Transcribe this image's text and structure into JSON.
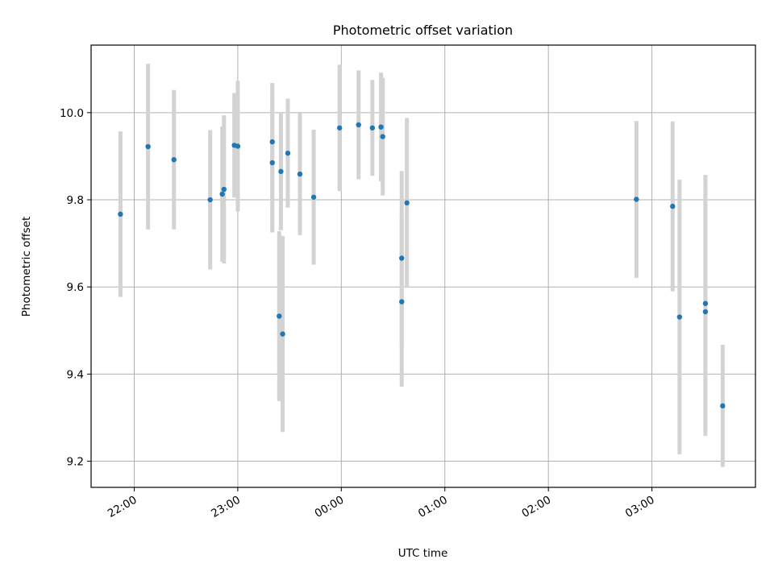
{
  "chart_data": {
    "type": "scatter",
    "title": "Photometric offset variation",
    "xlabel": "UTC time",
    "ylabel": "Photometric offset",
    "x_unit": "UTC clock time",
    "xlim": [
      "21:35",
      "04:00"
    ],
    "ylim": [
      9.14,
      10.155
    ],
    "x_ticks": [
      "22:00",
      "23:00",
      "00:00",
      "01:00",
      "02:00",
      "03:00"
    ],
    "y_ticks": [
      "9.2",
      "9.4",
      "9.6",
      "9.8",
      "10.0"
    ],
    "grid": true,
    "legend": "none",
    "colors": {
      "point": "#1f77b4",
      "errorbar": "#d3d3d3",
      "grid": "#b0b0b0"
    },
    "points": [
      {
        "x": "21:52",
        "y": 9.767,
        "err": 0.19
      },
      {
        "x": "22:08",
        "y": 9.922,
        "err": 0.19
      },
      {
        "x": "22:23",
        "y": 9.892,
        "err": 0.16
      },
      {
        "x": "22:44",
        "y": 9.8,
        "err": 0.16
      },
      {
        "x": "22:51",
        "y": 9.813,
        "err": 0.155
      },
      {
        "x": "22:52",
        "y": 9.824,
        "err": 0.17
      },
      {
        "x": "22:58",
        "y": 9.925,
        "err": 0.12
      },
      {
        "x": "23:00",
        "y": 9.923,
        "err": 0.15
      },
      {
        "x": "23:20",
        "y": 9.933,
        "err": 0.135
      },
      {
        "x": "23:20",
        "y": 9.885,
        "err": 0.16
      },
      {
        "x": "23:24",
        "y": 9.533,
        "err": 0.195
      },
      {
        "x": "23:25",
        "y": 9.865,
        "err": 0.135
      },
      {
        "x": "23:26",
        "y": 9.492,
        "err": 0.225
      },
      {
        "x": "23:29",
        "y": 9.907,
        "err": 0.125
      },
      {
        "x": "23:36",
        "y": 9.859,
        "err": 0.14
      },
      {
        "x": "23:44",
        "y": 9.806,
        "err": 0.155
      },
      {
        "x": "23:59",
        "y": 9.965,
        "err": 0.145
      },
      {
        "x": "00:10",
        "y": 9.972,
        "err": 0.125
      },
      {
        "x": "00:18",
        "y": 9.965,
        "err": 0.11
      },
      {
        "x": "00:23",
        "y": 9.967,
        "err": 0.125
      },
      {
        "x": "00:24",
        "y": 9.945,
        "err": 0.135
      },
      {
        "x": "00:35",
        "y": 9.666,
        "err": 0.2
      },
      {
        "x": "00:35",
        "y": 9.566,
        "err": 0.195
      },
      {
        "x": "00:38",
        "y": 9.793,
        "err": 0.195
      },
      {
        "x": "02:51",
        "y": 9.801,
        "err": 0.18
      },
      {
        "x": "03:12",
        "y": 9.785,
        "err": 0.195
      },
      {
        "x": "03:16",
        "y": 9.531,
        "err": 0.315
      },
      {
        "x": "03:31",
        "y": 9.562,
        "err": 0.295
      },
      {
        "x": "03:31",
        "y": 9.543,
        "err": 0.285
      },
      {
        "x": "03:41",
        "y": 9.327,
        "err": 0.14
      }
    ]
  }
}
